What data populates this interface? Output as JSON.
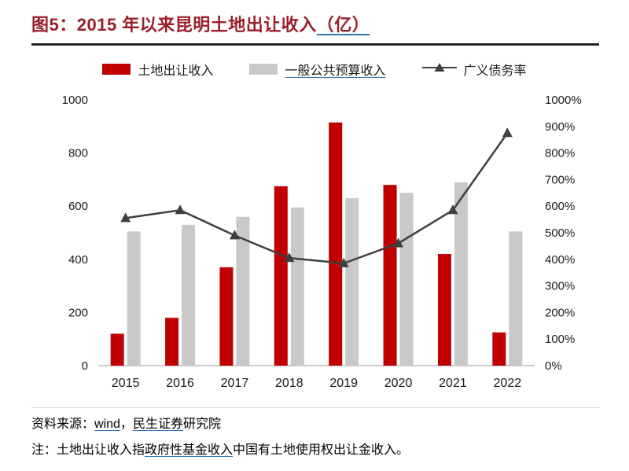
{
  "figure": {
    "title_main": "图5：2015 年以来昆明土地出让收入",
    "title_unit": "（亿）"
  },
  "chart_data": {
    "type": "bar",
    "subtype": "grouped-bars-with-line",
    "categories": [
      "2015",
      "2016",
      "2017",
      "2018",
      "2019",
      "2020",
      "2021",
      "2022"
    ],
    "series": [
      {
        "name": "土地出让收入",
        "type": "bar",
        "axis": "left",
        "color": "#C00000",
        "values": [
          120,
          180,
          370,
          675,
          915,
          680,
          420,
          125
        ]
      },
      {
        "name": "一般公共预算收入",
        "type": "bar",
        "axis": "left",
        "color": "#C9C9C9",
        "values": [
          505,
          530,
          560,
          595,
          630,
          650,
          690,
          505
        ]
      },
      {
        "name": "广义债务率",
        "type": "line",
        "axis": "right",
        "color": "#3F3F3F",
        "values": [
          555,
          585,
          490,
          405,
          385,
          460,
          585,
          875
        ]
      }
    ],
    "left_axis": {
      "min": 0,
      "max": 1000,
      "step": 200,
      "labels": [
        "0",
        "200",
        "400",
        "600",
        "800",
        "1000"
      ]
    },
    "right_axis": {
      "min": 0,
      "max": 1000,
      "step": 100,
      "labels": [
        "0%",
        "100%",
        "200%",
        "300%",
        "400%",
        "500%",
        "600%",
        "700%",
        "800%",
        "900%",
        "1000%"
      ]
    },
    "legend_position": "top",
    "grid": false
  },
  "colors": {
    "bar_red": "#C00000",
    "bar_gray": "#C9C9C9",
    "line_dark": "#3F3F3F",
    "title_red": "#9B1E28",
    "link_blue": "#2E74B5",
    "title_rule": "#23232B"
  },
  "footer": {
    "source_prefix": "资料来源：",
    "source_link1": "wind",
    "source_sep": "，",
    "source_link2": "民生证券",
    "source_suffix": "研究院",
    "note_prefix": "注：土地出让收入指",
    "note_link": "政府性基金收入",
    "note_suffix": "中国有土地使用权出让金收入。"
  }
}
